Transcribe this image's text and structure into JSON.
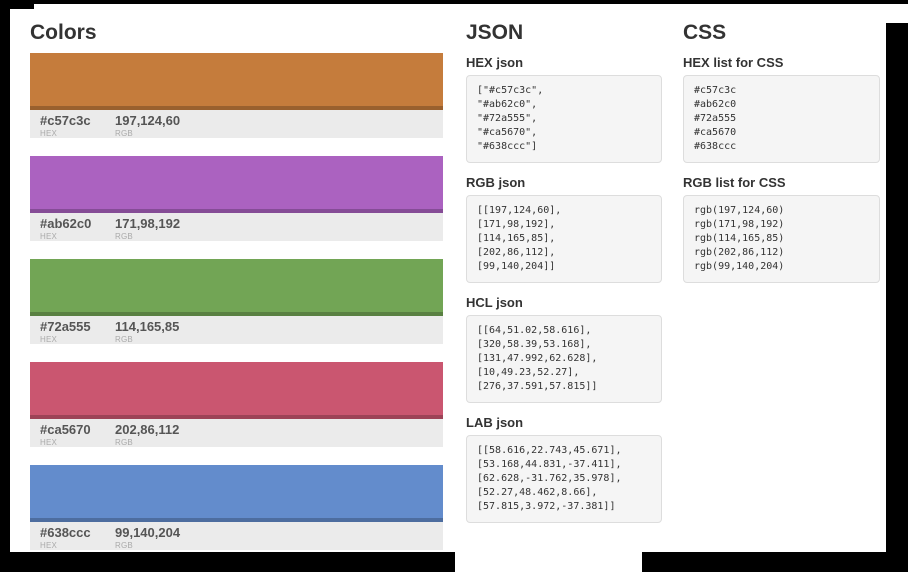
{
  "colors": {
    "title": "Colors",
    "hex_label": "HEX",
    "rgb_label": "RGB",
    "swatches": [
      {
        "hex": "#c57c3c",
        "rgb": "197,124,60"
      },
      {
        "hex": "#ab62c0",
        "rgb": "171,98,192"
      },
      {
        "hex": "#72a555",
        "rgb": "114,165,85"
      },
      {
        "hex": "#ca5670",
        "rgb": "202,86,112"
      },
      {
        "hex": "#638ccc",
        "rgb": "99,140,204"
      }
    ]
  },
  "json": {
    "title": "JSON",
    "sections": [
      {
        "heading": "HEX json",
        "code": "[\"#c57c3c\",\n\"#ab62c0\",\n\"#72a555\",\n\"#ca5670\",\n\"#638ccc\"]"
      },
      {
        "heading": "RGB json",
        "code": "[[197,124,60],\n[171,98,192],\n[114,165,85],\n[202,86,112],\n[99,140,204]]"
      },
      {
        "heading": "HCL json",
        "code": "[[64,51.02,58.616],\n[320,58.39,53.168],\n[131,47.992,62.628],\n[10,49.23,52.27],\n[276,37.591,57.815]]"
      },
      {
        "heading": "LAB json",
        "code": "[[58.616,22.743,45.671],\n[53.168,44.831,-37.411],\n[62.628,-31.762,35.978],\n[52.27,48.462,8.66],\n[57.815,3.972,-37.381]]"
      }
    ]
  },
  "css": {
    "title": "CSS",
    "sections": [
      {
        "heading": "HEX list for CSS",
        "code": "#c57c3c\n#ab62c0\n#72a555\n#ca5670\n#638ccc"
      },
      {
        "heading": "RGB list for CSS",
        "code": "rgb(197,124,60)\nrgb(171,98,192)\nrgb(114,165,85)\nrgb(202,86,112)\nrgb(99,140,204)"
      }
    ]
  }
}
